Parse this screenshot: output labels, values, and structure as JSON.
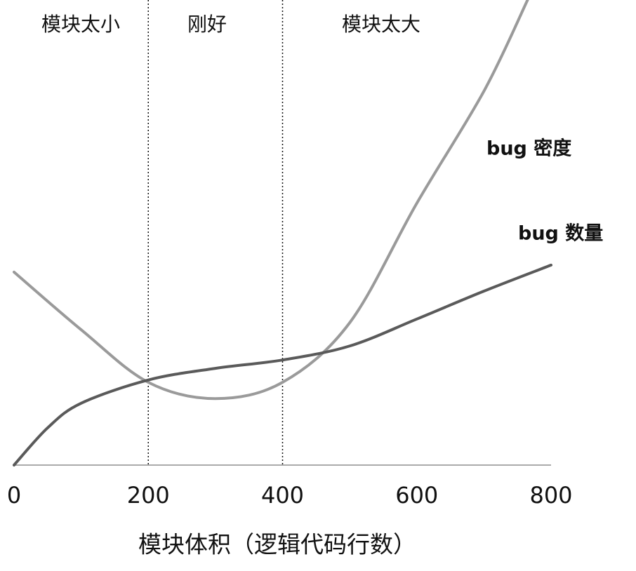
{
  "chart_data": {
    "type": "line",
    "xlabel": "模块体积（逻辑代码行数）",
    "x": [
      0,
      100,
      200,
      300,
      400,
      500,
      600,
      700,
      765
    ],
    "series": [
      {
        "name": "bug 密度",
        "color": "#9a9a9a",
        "values": [
          41.5,
          29.1,
          17.8,
          14.3,
          17.8,
          30.6,
          56.3,
          80.4,
          100
        ]
      }
    ],
    "x2": [
      0,
      50,
      100,
      200,
      300,
      400,
      500,
      600,
      700,
      800
    ],
    "series2": [
      {
        "name": "bug 数量",
        "color": "#5a5a5a",
        "values": [
          0,
          8,
          13.3,
          18.3,
          20.8,
          22.6,
          25.6,
          31.4,
          37.4,
          43
        ]
      }
    ],
    "dividers": [
      200,
      400
    ],
    "regions": [
      "模块太小",
      "刚好",
      "模块太大"
    ],
    "xlim": [
      0,
      800
    ],
    "xticks": [
      0,
      200,
      400,
      600,
      800
    ],
    "ylim": [
      0,
      100
    ]
  }
}
